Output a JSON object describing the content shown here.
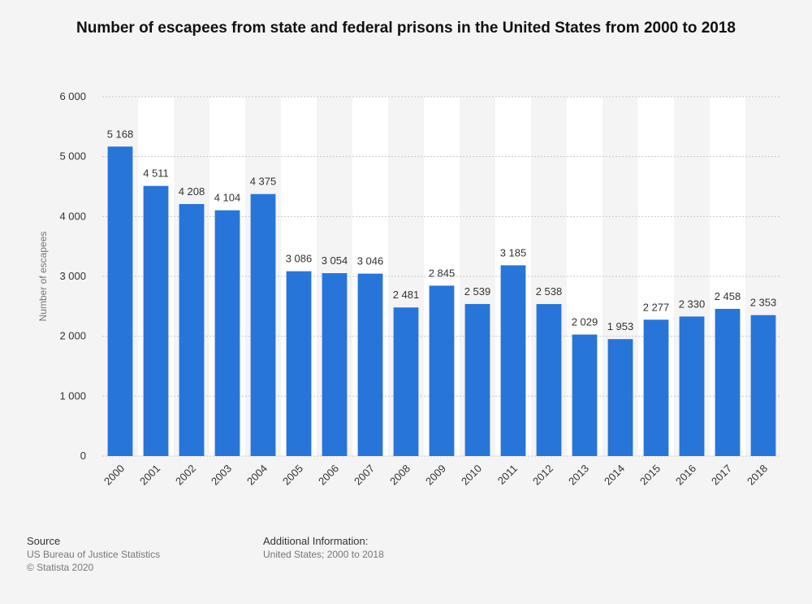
{
  "title": "Number of escapees from state and federal prisons in the United States from 2000 to 2018",
  "footer": {
    "source_heading": "Source",
    "source_text": "US Bureau of Justice Statistics",
    "copyright": "© Statista 2020",
    "info_heading": "Additional Information:",
    "info_text": "United States; 2000 to 2018"
  },
  "colors": {
    "bar": "#2875d9",
    "band": "#ffffff",
    "grid": "#c8c8c8",
    "text": "#333333",
    "axis_label": "#777777"
  },
  "chart_data": {
    "type": "bar",
    "title": "Number of escapees from state and federal prisons in the United States from 2000 to 2018",
    "xlabel": "",
    "ylabel": "Number of escapees",
    "categories": [
      "2000",
      "2001",
      "2002",
      "2003",
      "2004",
      "2005",
      "2006",
      "2007",
      "2008",
      "2009",
      "2010",
      "2011",
      "2012",
      "2013",
      "2014",
      "2015",
      "2016",
      "2017",
      "2018"
    ],
    "values": [
      5168,
      4511,
      4208,
      4104,
      4375,
      3086,
      3054,
      3046,
      2481,
      2845,
      2539,
      3185,
      2538,
      2029,
      1953,
      2277,
      2330,
      2458,
      2353
    ],
    "value_labels": [
      "5 168",
      "4 511",
      "4 208",
      "4 104",
      "4 375",
      "3 086",
      "3 054",
      "3 046",
      "2 481",
      "2 845",
      "2 539",
      "3 185",
      "2 538",
      "2 029",
      "1 953",
      "2 277",
      "2 330",
      "2 458",
      "2 353"
    ],
    "ylim": [
      0,
      6000
    ],
    "yticks": [
      0,
      1000,
      2000,
      3000,
      4000,
      5000,
      6000
    ],
    "ytick_labels": [
      "0",
      "1 000",
      "2 000",
      "3 000",
      "4 000",
      "5 000",
      "6 000"
    ],
    "grid": true,
    "legend": "none"
  }
}
